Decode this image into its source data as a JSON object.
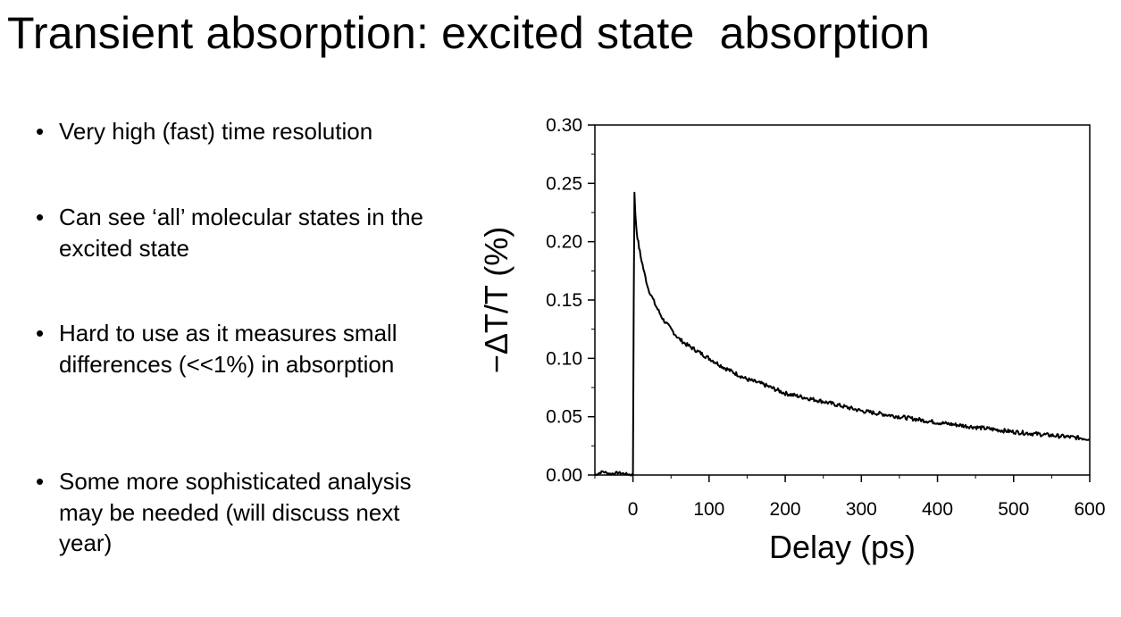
{
  "slide": {
    "title": "Transient absorption: excited state  absorption",
    "bullet_glyph": "•",
    "bullets": [
      "Very high (fast) time resolution",
      "Can see ‘all’ molecular states in the excited state",
      "Hard to use as it measures small differences (<<1%) in absorption",
      "Some more sophisticated analysis may be needed (will discuss next year)"
    ]
  },
  "chart_data": {
    "type": "line",
    "title": "",
    "xlabel": "Delay (ps)",
    "ylabel": "−ΔT/T  (%)",
    "xlim": [
      -50,
      600
    ],
    "ylim": [
      0,
      0.3
    ],
    "xticks": [
      0,
      100,
      200,
      300,
      400,
      500,
      600
    ],
    "xtick_labels": [
      "0",
      "100",
      "200",
      "300",
      "400",
      "500",
      "600"
    ],
    "yticks": [
      0,
      0.05,
      0.1,
      0.15,
      0.2,
      0.25,
      0.3
    ],
    "ytick_labels": [
      "0.00",
      "0.05",
      "0.10",
      "0.15",
      "0.20",
      "0.25",
      "0.30"
    ],
    "grid": false,
    "series": [
      {
        "name": "-ΔT/T",
        "color": "#000000",
        "x": [
          -50,
          -40,
          -30,
          -20,
          -10,
          0,
          1,
          2,
          3,
          5,
          8,
          10,
          15,
          20,
          30,
          40,
          50,
          60,
          70,
          80,
          100,
          120,
          150,
          170,
          200,
          250,
          300,
          350,
          400,
          450,
          500,
          550,
          600
        ],
        "y": [
          0.0,
          0.003,
          0.001,
          0.002,
          0.001,
          0.0,
          0.15,
          0.242,
          0.225,
          0.208,
          0.195,
          0.188,
          0.173,
          0.16,
          0.145,
          0.133,
          0.125,
          0.117,
          0.112,
          0.108,
          0.1,
          0.092,
          0.082,
          0.078,
          0.07,
          0.063,
          0.055,
          0.05,
          0.045,
          0.041,
          0.037,
          0.034,
          0.031
        ]
      }
    ]
  }
}
